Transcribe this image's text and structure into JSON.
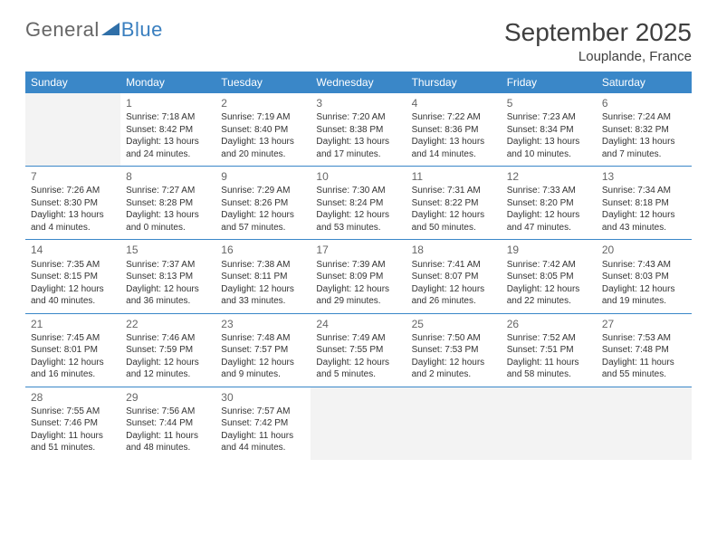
{
  "brand": {
    "part1": "General",
    "part2": "Blue"
  },
  "title": "September 2025",
  "location": "Louplande, France",
  "colors": {
    "header_bg": "#3a87c8",
    "header_text": "#ffffff",
    "rule": "#3a87c8",
    "empty_bg": "#f3f3f3",
    "title_color": "#3f3f3f",
    "daynum_color": "#666666",
    "body_text": "#333333"
  },
  "weekdays": [
    "Sunday",
    "Monday",
    "Tuesday",
    "Wednesday",
    "Thursday",
    "Friday",
    "Saturday"
  ],
  "weeks": [
    [
      null,
      {
        "n": "1",
        "sr": "7:18 AM",
        "ss": "8:42 PM",
        "dl": "13 hours and 24 minutes."
      },
      {
        "n": "2",
        "sr": "7:19 AM",
        "ss": "8:40 PM",
        "dl": "13 hours and 20 minutes."
      },
      {
        "n": "3",
        "sr": "7:20 AM",
        "ss": "8:38 PM",
        "dl": "13 hours and 17 minutes."
      },
      {
        "n": "4",
        "sr": "7:22 AM",
        "ss": "8:36 PM",
        "dl": "13 hours and 14 minutes."
      },
      {
        "n": "5",
        "sr": "7:23 AM",
        "ss": "8:34 PM",
        "dl": "13 hours and 10 minutes."
      },
      {
        "n": "6",
        "sr": "7:24 AM",
        "ss": "8:32 PM",
        "dl": "13 hours and 7 minutes."
      }
    ],
    [
      {
        "n": "7",
        "sr": "7:26 AM",
        "ss": "8:30 PM",
        "dl": "13 hours and 4 minutes."
      },
      {
        "n": "8",
        "sr": "7:27 AM",
        "ss": "8:28 PM",
        "dl": "13 hours and 0 minutes."
      },
      {
        "n": "9",
        "sr": "7:29 AM",
        "ss": "8:26 PM",
        "dl": "12 hours and 57 minutes."
      },
      {
        "n": "10",
        "sr": "7:30 AM",
        "ss": "8:24 PM",
        "dl": "12 hours and 53 minutes."
      },
      {
        "n": "11",
        "sr": "7:31 AM",
        "ss": "8:22 PM",
        "dl": "12 hours and 50 minutes."
      },
      {
        "n": "12",
        "sr": "7:33 AM",
        "ss": "8:20 PM",
        "dl": "12 hours and 47 minutes."
      },
      {
        "n": "13",
        "sr": "7:34 AM",
        "ss": "8:18 PM",
        "dl": "12 hours and 43 minutes."
      }
    ],
    [
      {
        "n": "14",
        "sr": "7:35 AM",
        "ss": "8:15 PM",
        "dl": "12 hours and 40 minutes."
      },
      {
        "n": "15",
        "sr": "7:37 AM",
        "ss": "8:13 PM",
        "dl": "12 hours and 36 minutes."
      },
      {
        "n": "16",
        "sr": "7:38 AM",
        "ss": "8:11 PM",
        "dl": "12 hours and 33 minutes."
      },
      {
        "n": "17",
        "sr": "7:39 AM",
        "ss": "8:09 PM",
        "dl": "12 hours and 29 minutes."
      },
      {
        "n": "18",
        "sr": "7:41 AM",
        "ss": "8:07 PM",
        "dl": "12 hours and 26 minutes."
      },
      {
        "n": "19",
        "sr": "7:42 AM",
        "ss": "8:05 PM",
        "dl": "12 hours and 22 minutes."
      },
      {
        "n": "20",
        "sr": "7:43 AM",
        "ss": "8:03 PM",
        "dl": "12 hours and 19 minutes."
      }
    ],
    [
      {
        "n": "21",
        "sr": "7:45 AM",
        "ss": "8:01 PM",
        "dl": "12 hours and 16 minutes."
      },
      {
        "n": "22",
        "sr": "7:46 AM",
        "ss": "7:59 PM",
        "dl": "12 hours and 12 minutes."
      },
      {
        "n": "23",
        "sr": "7:48 AM",
        "ss": "7:57 PM",
        "dl": "12 hours and 9 minutes."
      },
      {
        "n": "24",
        "sr": "7:49 AM",
        "ss": "7:55 PM",
        "dl": "12 hours and 5 minutes."
      },
      {
        "n": "25",
        "sr": "7:50 AM",
        "ss": "7:53 PM",
        "dl": "12 hours and 2 minutes."
      },
      {
        "n": "26",
        "sr": "7:52 AM",
        "ss": "7:51 PM",
        "dl": "11 hours and 58 minutes."
      },
      {
        "n": "27",
        "sr": "7:53 AM",
        "ss": "7:48 PM",
        "dl": "11 hours and 55 minutes."
      }
    ],
    [
      {
        "n": "28",
        "sr": "7:55 AM",
        "ss": "7:46 PM",
        "dl": "11 hours and 51 minutes."
      },
      {
        "n": "29",
        "sr": "7:56 AM",
        "ss": "7:44 PM",
        "dl": "11 hours and 48 minutes."
      },
      {
        "n": "30",
        "sr": "7:57 AM",
        "ss": "7:42 PM",
        "dl": "11 hours and 44 minutes."
      },
      null,
      null,
      null,
      null
    ]
  ],
  "labels": {
    "sunrise": "Sunrise:",
    "sunset": "Sunset:",
    "daylight": "Daylight:"
  }
}
